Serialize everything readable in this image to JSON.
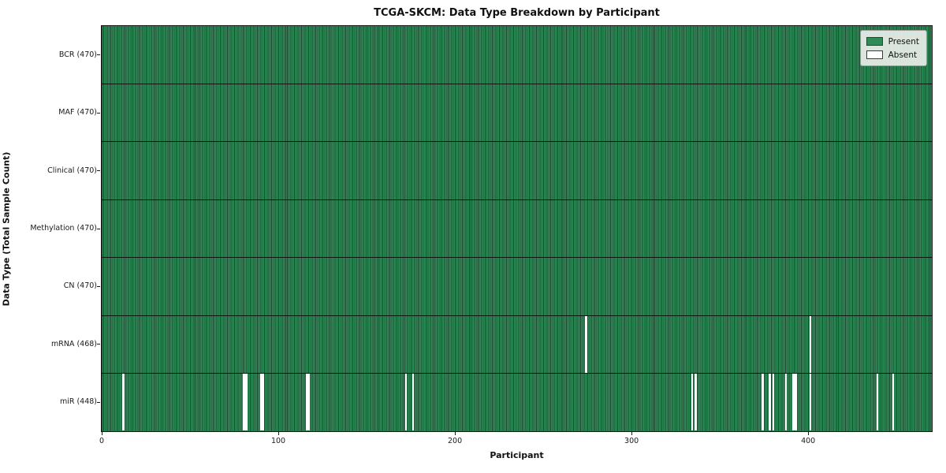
{
  "chart_data": {
    "type": "heatmap",
    "title": "TCGA-SKCM: Data Type Breakdown by Participant",
    "xlabel": "Participant",
    "ylabel": "Data Type (Total Sample Count)",
    "xlim": [
      0,
      470
    ],
    "n_participants": 470,
    "x_ticks": [
      0,
      100,
      200,
      300,
      400
    ],
    "grid": "off",
    "legend_position": "upper right",
    "legend": [
      {
        "label": "Present",
        "color": "#2e8b57"
      },
      {
        "label": "Absent",
        "color": "#ffffff"
      }
    ],
    "rows": [
      {
        "label": "BCR (470)",
        "data_type": "BCR",
        "total_samples": 470,
        "absent_participants": []
      },
      {
        "label": "MAF (470)",
        "data_type": "MAF",
        "total_samples": 470,
        "absent_participants": []
      },
      {
        "label": "Clinical (470)",
        "data_type": "Clinical",
        "total_samples": 470,
        "absent_participants": []
      },
      {
        "label": "Methylation (470)",
        "data_type": "Methylation",
        "total_samples": 470,
        "absent_participants": []
      },
      {
        "label": "CN (470)",
        "data_type": "CN",
        "total_samples": 470,
        "absent_participants": []
      },
      {
        "label": "mRNA (468)",
        "data_type": "mRNA",
        "total_samples": 468,
        "absent_participants": [
          274,
          401
        ]
      },
      {
        "label": "miR (448)",
        "data_type": "miR",
        "total_samples": 448,
        "absent_participants": [
          12,
          80,
          81,
          82,
          90,
          91,
          116,
          117,
          172,
          176,
          334,
          336,
          374,
          378,
          380,
          387,
          391,
          392,
          393,
          401,
          439,
          448
        ]
      }
    ],
    "colors": {
      "present": "#2e8b57",
      "absent": "#ffffff",
      "bar_edge": "#14301f",
      "axes_border": "#161616",
      "legend_bg": "#eaeeea",
      "legend_border": "#9a9a9a"
    }
  }
}
